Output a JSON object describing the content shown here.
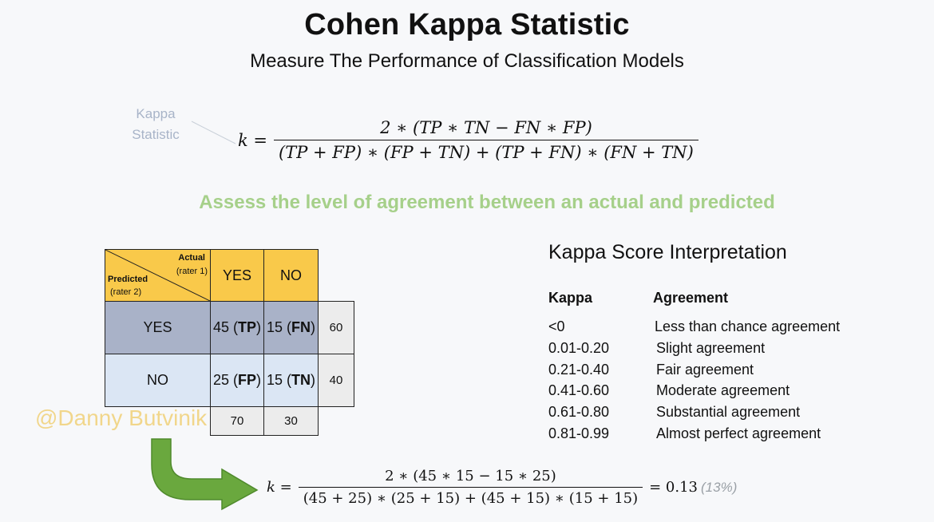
{
  "header": {
    "title": "Cohen Kappa Statistic",
    "subtitle": "Measure The Performance of Classification Models"
  },
  "kappa_label": [
    "Kappa",
    "Statistic"
  ],
  "formula": {
    "lhs": "k =",
    "numerator": "2 ∗ (TP ∗ TN − FN ∗ FP)",
    "denominator": "(TP + FP) ∗ (FP + TN) + (TP + FN) ∗ (FN + TN)"
  },
  "tagline": "Assess the level of agreement between an actual and predicted",
  "matrix": {
    "actual_label": "Actual",
    "actual_rater": "(rater 1)",
    "predicted_label": "Predicted",
    "predicted_rater": "(rater 2)",
    "col_headers": [
      "YES",
      "NO"
    ],
    "row_headers": [
      "YES",
      "NO"
    ],
    "cells": [
      [
        {
          "value": "45",
          "tag": "TP"
        },
        {
          "value": "15",
          "tag": "FN"
        }
      ],
      [
        {
          "value": "25",
          "tag": "FP"
        },
        {
          "value": "15",
          "tag": "TN"
        }
      ]
    ],
    "row_totals": [
      "60",
      "40"
    ],
    "col_totals": [
      "70",
      "30"
    ]
  },
  "watermark": "@Danny Butvinik",
  "interpretation": {
    "title": "Kappa Score Interpretation",
    "col_kappa": "Kappa",
    "col_agreement": "Agreement",
    "rows": [
      {
        "kappa": "<0",
        "agreement": "Less than chance agreement"
      },
      {
        "kappa": "0.01-0.20",
        "agreement": "Slight agreement"
      },
      {
        "kappa": "0.21-0.40",
        "agreement": "Fair agreement"
      },
      {
        "kappa": "0.41-0.60",
        "agreement": "Moderate agreement"
      },
      {
        "kappa": "0.61-0.80",
        "agreement": "Substantial agreement"
      },
      {
        "kappa": "0.81-0.99",
        "agreement": "Almost perfect agreement"
      }
    ]
  },
  "computed": {
    "lhs": "k =",
    "numerator": "2 ∗ (45 ∗ 15 − 15 ∗ 25)",
    "denominator": "(45 + 25) ∗ (25 + 15) + (45 + 15) ∗ (15 + 15)",
    "result": "= 0.13",
    "percent": "(13%)"
  },
  "colors": {
    "header_yellow": "#f9c94a",
    "row_yes": "#a9b2c8",
    "row_no": "#dbe6f4",
    "totals_gray": "#ececec",
    "tagline_green": "#a6d08a",
    "arrow_green": "#6aa83e",
    "watermark": "#f0d178"
  },
  "icons": {
    "arrow": "curved-arrow-icon"
  }
}
